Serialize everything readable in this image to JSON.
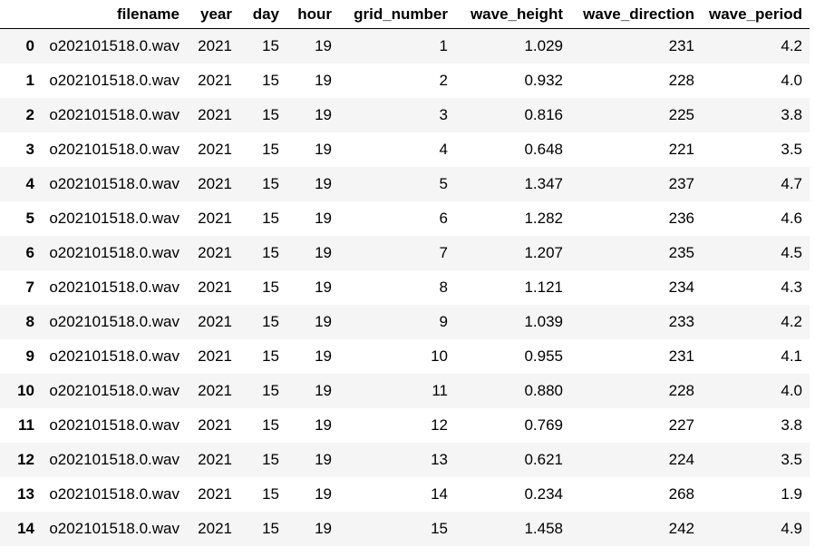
{
  "table": {
    "index_header": "",
    "columns": [
      "filename",
      "year",
      "day",
      "hour",
      "grid_number",
      "wave_height",
      "wave_direction",
      "wave_period"
    ],
    "rows": [
      {
        "index": "0",
        "cells": [
          "o202101518.0.wav",
          "2021",
          "15",
          "19",
          "1",
          "1.029",
          "231",
          "4.2"
        ]
      },
      {
        "index": "1",
        "cells": [
          "o202101518.0.wav",
          "2021",
          "15",
          "19",
          "2",
          "0.932",
          "228",
          "4.0"
        ]
      },
      {
        "index": "2",
        "cells": [
          "o202101518.0.wav",
          "2021",
          "15",
          "19",
          "3",
          "0.816",
          "225",
          "3.8"
        ]
      },
      {
        "index": "3",
        "cells": [
          "o202101518.0.wav",
          "2021",
          "15",
          "19",
          "4",
          "0.648",
          "221",
          "3.5"
        ]
      },
      {
        "index": "4",
        "cells": [
          "o202101518.0.wav",
          "2021",
          "15",
          "19",
          "5",
          "1.347",
          "237",
          "4.7"
        ]
      },
      {
        "index": "5",
        "cells": [
          "o202101518.0.wav",
          "2021",
          "15",
          "19",
          "6",
          "1.282",
          "236",
          "4.6"
        ]
      },
      {
        "index": "6",
        "cells": [
          "o202101518.0.wav",
          "2021",
          "15",
          "19",
          "7",
          "1.207",
          "235",
          "4.5"
        ]
      },
      {
        "index": "7",
        "cells": [
          "o202101518.0.wav",
          "2021",
          "15",
          "19",
          "8",
          "1.121",
          "234",
          "4.3"
        ]
      },
      {
        "index": "8",
        "cells": [
          "o202101518.0.wav",
          "2021",
          "15",
          "19",
          "9",
          "1.039",
          "233",
          "4.2"
        ]
      },
      {
        "index": "9",
        "cells": [
          "o202101518.0.wav",
          "2021",
          "15",
          "19",
          "10",
          "0.955",
          "231",
          "4.1"
        ]
      },
      {
        "index": "10",
        "cells": [
          "o202101518.0.wav",
          "2021",
          "15",
          "19",
          "11",
          "0.880",
          "228",
          "4.0"
        ]
      },
      {
        "index": "11",
        "cells": [
          "o202101518.0.wav",
          "2021",
          "15",
          "19",
          "12",
          "0.769",
          "227",
          "3.8"
        ]
      },
      {
        "index": "12",
        "cells": [
          "o202101518.0.wav",
          "2021",
          "15",
          "19",
          "13",
          "0.621",
          "224",
          "3.5"
        ]
      },
      {
        "index": "13",
        "cells": [
          "o202101518.0.wav",
          "2021",
          "15",
          "19",
          "14",
          "0.234",
          "268",
          "1.9"
        ]
      },
      {
        "index": "14",
        "cells": [
          "o202101518.0.wav",
          "2021",
          "15",
          "19",
          "15",
          "1.458",
          "242",
          "4.9"
        ]
      }
    ]
  },
  "colors": {
    "stripe": "#f5f5f5",
    "text": "#000000",
    "header_rule": "#000000"
  }
}
